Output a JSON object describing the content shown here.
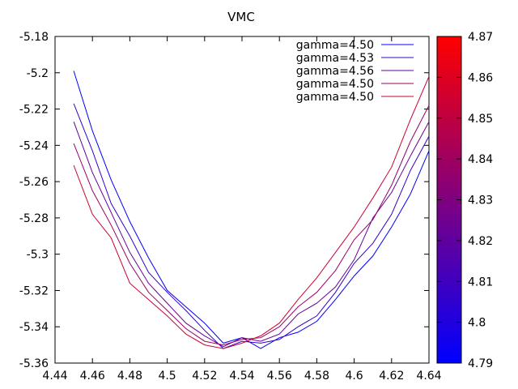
{
  "chart_data": {
    "type": "line",
    "title": "VMC",
    "xlabel": "",
    "ylabel": "",
    "xlim": [
      4.44,
      4.64
    ],
    "ylim": [
      -5.36,
      -5.18
    ],
    "xticks": [
      "4.44",
      "4.46",
      "4.48",
      "4.5",
      "4.52",
      "4.54",
      "4.56",
      "4.58",
      "4.6",
      "4.62",
      "4.64"
    ],
    "yticks": [
      "-5.18",
      "-5.2",
      "-5.22",
      "-5.24",
      "-5.26",
      "-5.28",
      "-5.3",
      "-5.32",
      "-5.34",
      "-5.36"
    ],
    "x": [
      4.45,
      4.46,
      4.47,
      4.48,
      4.49,
      4.5,
      4.51,
      4.52,
      4.53,
      4.54,
      4.55,
      4.56,
      4.57,
      4.58,
      4.59,
      4.6,
      4.61,
      4.62,
      4.63,
      4.64
    ],
    "series": [
      {
        "name": "gamma=4.50",
        "color": "#0000ff",
        "values": [
          -5.199,
          -5.232,
          -5.259,
          -5.282,
          -5.302,
          -5.32,
          -5.329,
          -5.338,
          -5.349,
          -5.346,
          -5.352,
          -5.346,
          -5.343,
          -5.337,
          -5.325,
          -5.312,
          -5.301,
          -5.285,
          -5.267,
          -5.243
        ]
      },
      {
        "name": "gamma=4.53",
        "color": "#3300cc",
        "values": [
          -5.217,
          -5.243,
          -5.272,
          -5.29,
          -5.31,
          -5.321,
          -5.331,
          -5.342,
          -5.352,
          -5.348,
          -5.349,
          -5.347,
          -5.34,
          -5.334,
          -5.321,
          -5.305,
          -5.294,
          -5.278,
          -5.254,
          -5.235
        ]
      },
      {
        "name": "gamma=4.56",
        "color": "#660099",
        "values": [
          -5.227,
          -5.255,
          -5.277,
          -5.299,
          -5.316,
          -5.327,
          -5.338,
          -5.345,
          -5.351,
          -5.346,
          -5.348,
          -5.344,
          -5.333,
          -5.327,
          -5.318,
          -5.303,
          -5.28,
          -5.266,
          -5.246,
          -5.227
        ]
      },
      {
        "name": "gamma=4.50",
        "color": "#990066",
        "values": [
          -5.239,
          -5.265,
          -5.284,
          -5.305,
          -5.321,
          -5.331,
          -5.341,
          -5.348,
          -5.35,
          -5.347,
          -5.346,
          -5.34,
          -5.329,
          -5.321,
          -5.309,
          -5.292,
          -5.281,
          -5.262,
          -5.238,
          -5.218
        ]
      },
      {
        "name": "gamma=4.50",
        "color": "#cc0033",
        "values": [
          -5.251,
          -5.278,
          -5.291,
          -5.316,
          -5.325,
          -5.334,
          -5.344,
          -5.35,
          -5.352,
          -5.349,
          -5.345,
          -5.338,
          -5.325,
          -5.313,
          -5.299,
          -5.285,
          -5.269,
          -5.252,
          -5.226,
          -5.202
        ]
      }
    ],
    "colorbar": {
      "min": 4.79,
      "max": 4.87,
      "ticks": [
        "4.87",
        "4.86",
        "4.85",
        "4.84",
        "4.83",
        "4.82",
        "4.81",
        "4.8",
        "4.79"
      ],
      "color_low": "#0000ff",
      "color_high": "#ff0000"
    },
    "legend_position": "top-right",
    "grid": false
  }
}
